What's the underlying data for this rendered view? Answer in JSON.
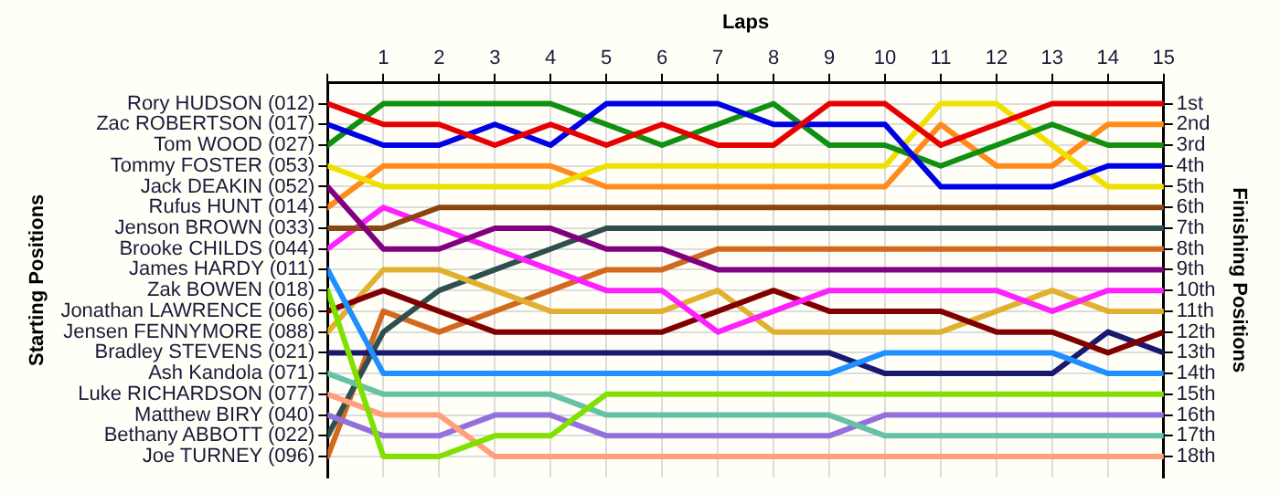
{
  "chart_data": {
    "type": "line",
    "xlabel": "Laps",
    "legend_title": "Starting Positions",
    "ylabel": "Finishing Positions",
    "x": [
      0,
      1,
      2,
      3,
      4,
      5,
      6,
      7,
      8,
      9,
      10,
      11,
      12,
      13,
      14,
      15
    ],
    "xlim": [
      0,
      15
    ],
    "xticks": [
      {
        "value": 0,
        "label": null
      },
      1,
      2,
      3,
      4,
      5,
      6,
      7,
      8,
      9,
      10,
      11,
      12,
      13,
      14,
      15
    ],
    "ylim": [
      19,
      0
    ],
    "yticks": [
      {
        "value": 1,
        "label": "1st"
      },
      {
        "value": 2,
        "label": "2nd"
      },
      {
        "value": 3,
        "label": "3rd"
      },
      {
        "value": 4,
        "label": "4th"
      },
      {
        "value": 5,
        "label": "5th"
      },
      {
        "value": 6,
        "label": "6th"
      },
      {
        "value": 7,
        "label": "7th"
      },
      {
        "value": 8,
        "label": "8th"
      },
      {
        "value": 9,
        "label": "9th"
      },
      {
        "value": 10,
        "label": "10th"
      },
      {
        "value": 11,
        "label": "11th"
      },
      {
        "value": 12,
        "label": "12th"
      },
      {
        "value": 13,
        "label": "13th"
      },
      {
        "value": 14,
        "label": "14th"
      },
      {
        "value": 15,
        "label": "15th"
      },
      {
        "value": 16,
        "label": "16th"
      },
      {
        "value": 17,
        "label": "17th"
      },
      {
        "value": 18,
        "label": "18th"
      }
    ],
    "grid": true,
    "series": [
      {
        "name": "Rory HUDSON (012)",
        "color": "#e60000",
        "values": [
          1,
          2,
          2,
          3,
          2,
          3,
          2,
          3,
          3,
          1,
          1,
          3,
          2,
          1,
          1,
          1
        ]
      },
      {
        "name": "Zac ROBERTSON (017)",
        "color": "#0000e6",
        "values": [
          2,
          3,
          3,
          2,
          3,
          1,
          1,
          1,
          2,
          2,
          2,
          5,
          5,
          5,
          4,
          4
        ]
      },
      {
        "name": "Tom WOOD (027)",
        "color": "#109010",
        "values": [
          3,
          1,
          1,
          1,
          1,
          2,
          3,
          2,
          1,
          3,
          3,
          4,
          3,
          2,
          3,
          3
        ]
      },
      {
        "name": "Tommy FOSTER (053)",
        "color": "#f0e000",
        "values": [
          4,
          5,
          5,
          5,
          5,
          4,
          4,
          4,
          4,
          4,
          4,
          1,
          1,
          3,
          5,
          5
        ]
      },
      {
        "name": "Jack DEAKIN (052)",
        "color": "#800080",
        "values": [
          5,
          8,
          8,
          7,
          7,
          8,
          8,
          9,
          9,
          9,
          9,
          9,
          9,
          9,
          9,
          9
        ]
      },
      {
        "name": "Rufus HUNT (014)",
        "color": "#ff8c1a",
        "values": [
          6,
          4,
          4,
          4,
          4,
          5,
          5,
          5,
          5,
          5,
          5,
          2,
          4,
          4,
          2,
          2
        ]
      },
      {
        "name": "Jenson BROWN (033)",
        "color": "#8b4513",
        "values": [
          7,
          7,
          6,
          6,
          6,
          6,
          6,
          6,
          6,
          6,
          6,
          6,
          6,
          6,
          6,
          6
        ]
      },
      {
        "name": "Brooke CHILDS (044)",
        "color": "#ff20ff",
        "values": [
          8,
          6,
          7,
          8,
          9,
          10,
          10,
          12,
          11,
          10,
          10,
          10,
          10,
          11,
          10,
          10
        ]
      },
      {
        "name": "James HARDY (011)",
        "color": "#1e90ff",
        "values": [
          9,
          14,
          14,
          14,
          14,
          14,
          14,
          14,
          14,
          14,
          13,
          13,
          13,
          13,
          14,
          14
        ]
      },
      {
        "name": "Zak BOWEN (018)",
        "color": "#80e000",
        "values": [
          10,
          18,
          18,
          17,
          17,
          15,
          15,
          15,
          15,
          15,
          15,
          15,
          15,
          15,
          15,
          15
        ]
      },
      {
        "name": "Jonathan LAWRENCE (066)",
        "color": "#800000",
        "values": [
          11,
          10,
          11,
          12,
          12,
          12,
          12,
          11,
          10,
          11,
          11,
          11,
          12,
          12,
          13,
          12
        ]
      },
      {
        "name": "Jensen FENNYMORE (088)",
        "color": "#e0b030",
        "values": [
          12,
          9,
          9,
          10,
          11,
          11,
          11,
          10,
          12,
          12,
          12,
          12,
          11,
          10,
          11,
          11
        ]
      },
      {
        "name": "Bradley STEVENS (021)",
        "color": "#191970",
        "values": [
          13,
          13,
          13,
          13,
          13,
          13,
          13,
          13,
          13,
          13,
          14,
          14,
          14,
          14,
          12,
          13
        ]
      },
      {
        "name": "Ash Kandola (071)",
        "color": "#66c2a5",
        "values": [
          14,
          15,
          15,
          15,
          15,
          16,
          16,
          16,
          16,
          16,
          17,
          17,
          17,
          17,
          17,
          17
        ]
      },
      {
        "name": "Luke RICHARDSON (077)",
        "color": "#ffa07a",
        "values": [
          15,
          16,
          16,
          18,
          18,
          18,
          18,
          18,
          18,
          18,
          18,
          18,
          18,
          18,
          18,
          18
        ]
      },
      {
        "name": "Matthew BIRY (040)",
        "color": "#9370db",
        "values": [
          16,
          17,
          17,
          16,
          16,
          17,
          17,
          17,
          17,
          17,
          16,
          16,
          16,
          16,
          16,
          16
        ]
      },
      {
        "name": "Bethany ABBOTT (022)",
        "color": "#2f4f4f",
        "values": [
          17,
          12,
          10,
          9,
          8,
          7,
          7,
          7,
          7,
          7,
          7,
          7,
          7,
          7,
          7,
          7
        ]
      },
      {
        "name": "Joe TURNEY (096)",
        "color": "#d2691e",
        "values": [
          18,
          11,
          12,
          11,
          10,
          9,
          9,
          8,
          8,
          8,
          8,
          8,
          8,
          8,
          8,
          8
        ]
      }
    ]
  }
}
